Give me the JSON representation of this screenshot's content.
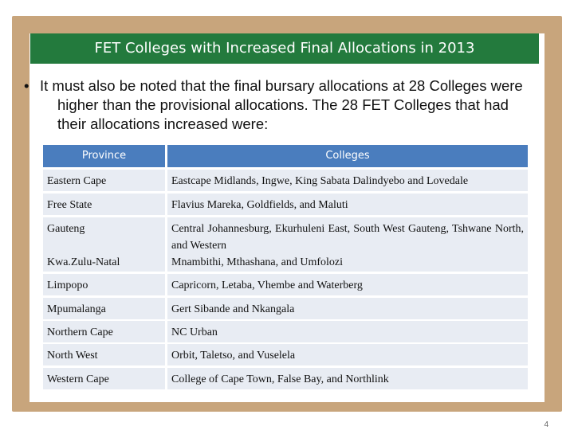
{
  "title": "FET Colleges with Increased Final Allocations in 2013",
  "bullet": "It must also be noted that the final bursary allocations at 28 Colleges were higher than the provisional allocations. The 28 FET Colleges that had their allocations increased were:",
  "table": {
    "headers": [
      "Province",
      "Colleges"
    ],
    "rows": [
      {
        "province": "Eastern Cape",
        "colleges": "Eastcape Midlands, Ingwe, King Sabata Dalindyebo and Lovedale"
      },
      {
        "province": "Free State",
        "colleges": "Flavius Mareka, Goldfields, and Maluti"
      },
      {
        "province": "Gauteng",
        "colleges": "Central Johannesburg, Ekurhuleni East, South West Gauteng, Tshwane North, and Western"
      },
      {
        "province": "Kwa.Zulu-Natal",
        "colleges": "Mnambithi, Mthashana, and Umfolozi"
      },
      {
        "province": "Limpopo",
        "colleges": "Capricorn, Letaba, Vhembe and Waterberg"
      },
      {
        "province": "Mpumalanga",
        "colleges": "Gert Sibande and Nkangala"
      },
      {
        "province": "Northern Cape",
        "colleges": "NC Urban"
      },
      {
        "province": "North West",
        "colleges": "Orbit, Taletso, and Vuselela"
      },
      {
        "province": "Western Cape",
        "colleges": "College of Cape Town, False Bay, and Northlink"
      }
    ]
  },
  "page_number": "4"
}
